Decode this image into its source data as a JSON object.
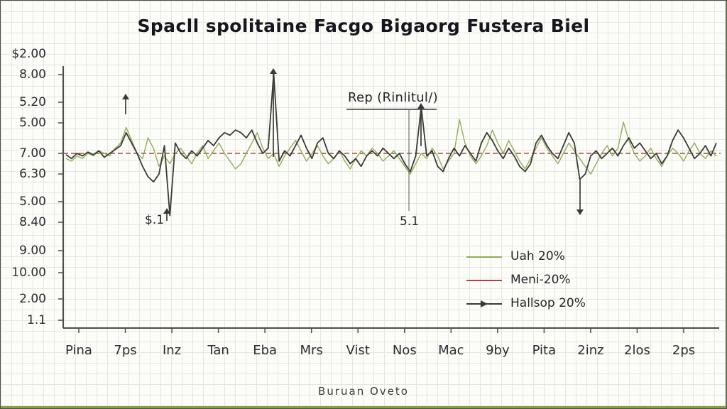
{
  "chart_data": {
    "type": "line",
    "title": "Spacll spolitaine Facgo Bigaorg Fustera Biel",
    "xlabel": "Buruan Oveto",
    "ylabel": "",
    "grid": true,
    "legend_position": "inside-lower-right",
    "baseline_value": 7.0,
    "y_tick_labels": [
      "$2.00",
      "8.00",
      "5.20",
      "5.00",
      "7.00",
      "6.30",
      "5.00",
      "8.40",
      "9.00",
      "10.00",
      "2.00",
      "1.1"
    ],
    "x_tick_labels": [
      "Pina",
      "7ps",
      "Inz",
      "Tan",
      "Eba",
      "Mrs",
      "Vist",
      "Nos",
      "Mac",
      "9by",
      "Pita",
      "2inz",
      "2los",
      "2ps"
    ],
    "series": [
      {
        "name": "Uah 20%",
        "color": "#8fae52",
        "width": 1.4,
        "values": [
          6.8,
          6.7,
          6.9,
          6.8,
          7.0,
          6.9,
          7.1,
          7.0,
          6.9,
          7.2,
          7.4,
          8.0,
          7.5,
          7.0,
          6.8,
          7.6,
          7.2,
          6.5,
          6.9,
          6.6,
          7.0,
          7.2,
          6.9,
          6.6,
          7.0,
          7.3,
          6.8,
          7.1,
          7.4,
          7.0,
          6.7,
          6.4,
          6.6,
          7.0,
          7.4,
          7.8,
          7.2,
          6.8,
          7.0,
          6.5,
          6.9,
          7.2,
          7.5,
          7.1,
          6.7,
          7.0,
          7.3,
          6.9,
          6.6,
          6.8,
          7.1,
          6.7,
          6.4,
          6.8,
          7.1,
          6.9,
          7.2,
          7.0,
          6.7,
          6.9,
          7.1,
          6.8,
          6.5,
          6.2,
          6.6,
          7.0,
          6.8,
          7.2,
          6.9,
          6.4,
          6.7,
          7.0,
          8.3,
          7.4,
          6.9,
          6.6,
          6.9,
          7.3,
          7.9,
          7.4,
          7.0,
          7.5,
          7.1,
          6.7,
          6.4,
          6.8,
          7.2,
          7.6,
          7.2,
          6.9,
          6.6,
          7.0,
          7.4,
          7.1,
          6.8,
          6.5,
          6.2,
          6.6,
          7.0,
          7.3,
          6.9,
          7.2,
          8.2,
          7.5,
          7.0,
          6.7,
          6.9,
          7.2,
          6.8,
          6.5,
          6.9,
          7.2,
          7.0,
          6.7,
          7.1,
          7.4,
          7.0,
          6.8,
          7.1,
          6.9
        ]
      },
      {
        "name": "Meni-20%",
        "color": "#a8473f",
        "style": "dashed",
        "constant": 7.0
      },
      {
        "name": "Hallsop 20%",
        "color": "#3a3a3a",
        "width": 1.8,
        "marker": "arrow",
        "values": [
          6.95,
          6.8,
          7.0,
          6.9,
          7.05,
          6.95,
          7.1,
          6.85,
          7.0,
          7.15,
          7.3,
          7.8,
          7.4,
          7.0,
          6.5,
          6.1,
          5.9,
          6.2,
          7.3,
          4.6,
          7.4,
          7.0,
          6.8,
          7.1,
          6.9,
          7.2,
          7.5,
          7.3,
          7.6,
          7.8,
          7.7,
          7.9,
          7.8,
          7.6,
          7.9,
          7.4,
          7.0,
          7.2,
          10.1,
          6.7,
          7.1,
          6.9,
          7.3,
          7.7,
          7.2,
          6.8,
          7.4,
          7.6,
          7.0,
          6.8,
          7.1,
          6.9,
          6.6,
          6.8,
          6.5,
          6.9,
          7.1,
          6.9,
          7.2,
          7.0,
          6.8,
          7.0,
          6.6,
          6.3,
          6.9,
          8.8,
          6.9,
          7.1,
          6.5,
          6.3,
          6.8,
          7.2,
          6.9,
          7.3,
          7.0,
          6.7,
          7.4,
          7.8,
          7.5,
          7.1,
          6.8,
          7.2,
          6.9,
          6.5,
          6.3,
          6.6,
          7.4,
          7.7,
          7.3,
          7.0,
          6.8,
          7.3,
          7.8,
          7.4,
          6.0,
          6.2,
          6.9,
          7.1,
          6.8,
          7.0,
          7.2,
          6.9,
          7.3,
          7.6,
          7.2,
          7.4,
          7.1,
          6.8,
          7.0,
          6.6,
          6.9,
          7.5,
          7.9,
          7.6,
          7.2,
          6.8,
          7.0,
          7.3,
          6.9,
          7.4
        ]
      }
    ],
    "annotations": [
      {
        "text": "Rep (Rinlitul/)"
      },
      {
        "text": "$.1"
      },
      {
        "text": "5.1"
      }
    ]
  }
}
